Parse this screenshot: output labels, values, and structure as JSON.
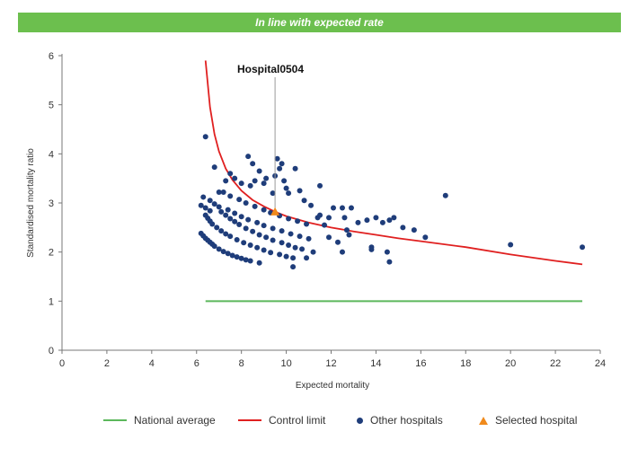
{
  "banner": {
    "text": "In line with expected rate",
    "color": "#6cbf4e"
  },
  "chart_data": {
    "type": "scatter",
    "title": "",
    "xlabel": "Expected mortality",
    "ylabel": "Standardised mortality ratio",
    "xlim": [
      0,
      24
    ],
    "ylim": [
      0,
      6
    ],
    "xticks": [
      0,
      2,
      4,
      6,
      8,
      10,
      12,
      14,
      16,
      18,
      20,
      22,
      24
    ],
    "yticks": [
      0,
      1,
      2,
      3,
      4,
      5,
      6
    ],
    "grid": false,
    "legend_position": "bottom",
    "colors": {
      "national": "#5cb85c",
      "control": "#e02020",
      "others": "#1f3d7a",
      "selected": "#f08a1c",
      "axis": "#777777"
    },
    "series": [
      {
        "name": "National average",
        "kind": "line",
        "x": [
          6.4,
          23.2
        ],
        "y": [
          1.0,
          1.0
        ]
      },
      {
        "name": "Control limit",
        "kind": "line",
        "x": [
          6.4,
          6.6,
          6.8,
          7.0,
          7.3,
          7.6,
          8.0,
          8.5,
          9.0,
          9.5,
          10.0,
          11.0,
          12.0,
          13.0,
          14.0,
          15.0,
          16.0,
          18.0,
          20.0,
          22.0,
          23.2
        ],
        "y": [
          5.9,
          4.95,
          4.4,
          4.05,
          3.7,
          3.47,
          3.25,
          3.06,
          2.93,
          2.82,
          2.73,
          2.6,
          2.5,
          2.42,
          2.35,
          2.28,
          2.22,
          2.1,
          1.95,
          1.82,
          1.75
        ]
      },
      {
        "name": "Other hospitals",
        "kind": "scatter",
        "x": [
          6.2,
          6.3,
          6.4,
          6.5,
          6.6,
          6.7,
          6.8,
          7.0,
          7.2,
          7.4,
          7.6,
          7.8,
          8.0,
          8.2,
          8.4,
          6.4,
          6.5,
          6.6,
          6.7,
          6.9,
          7.1,
          7.3,
          7.5,
          7.8,
          8.1,
          8.4,
          8.7,
          9.0,
          9.3,
          9.7,
          10.0,
          10.3,
          7.1,
          7.3,
          7.5,
          7.7,
          7.9,
          8.2,
          8.5,
          8.8,
          9.1,
          9.4,
          9.8,
          10.1,
          10.4,
          10.7,
          6.3,
          6.6,
          6.8,
          7.0,
          7.4,
          7.7,
          8.0,
          8.3,
          8.7,
          9.0,
          9.4,
          9.8,
          10.2,
          10.6,
          11.0,
          6.2,
          6.4,
          6.6,
          7.2,
          7.5,
          7.9,
          8.2,
          8.6,
          9.0,
          9.3,
          9.7,
          10.1,
          10.5,
          10.9,
          6.4,
          6.8,
          7.0,
          7.3,
          7.5,
          7.7,
          8.0,
          8.3,
          8.4,
          8.5,
          8.6,
          8.8,
          9.0,
          9.1,
          9.4,
          9.5,
          9.6,
          9.7,
          9.8,
          9.9,
          10.0,
          10.1,
          10.4,
          10.6,
          10.8,
          11.1,
          11.4,
          11.5,
          8.8,
          10.3,
          10.9,
          11.2,
          11.5,
          11.7,
          11.9,
          12.1,
          12.3,
          12.5,
          12.6,
          12.7,
          12.8,
          12.9,
          13.2,
          13.6,
          13.8,
          14.0,
          14.3,
          14.6,
          14.8,
          15.2,
          15.7,
          16.2,
          17.1,
          20.0,
          23.2,
          11.9,
          12.5,
          13.8,
          14.5,
          14.6
        ],
        "y": [
          2.38,
          2.33,
          2.28,
          2.24,
          2.2,
          2.16,
          2.12,
          2.06,
          2.01,
          1.97,
          1.93,
          1.9,
          1.87,
          1.84,
          1.82,
          2.75,
          2.69,
          2.63,
          2.57,
          2.5,
          2.43,
          2.37,
          2.32,
          2.25,
          2.19,
          2.14,
          2.09,
          2.04,
          1.99,
          1.95,
          1.91,
          1.88,
          2.82,
          2.75,
          2.68,
          2.62,
          2.56,
          2.48,
          2.42,
          2.35,
          2.3,
          2.24,
          2.19,
          2.14,
          2.09,
          2.06,
          3.12,
          3.05,
          2.98,
          2.92,
          2.86,
          2.79,
          2.72,
          2.66,
          2.6,
          2.54,
          2.48,
          2.43,
          2.37,
          2.32,
          2.27,
          2.95,
          2.9,
          2.84,
          3.22,
          3.14,
          3.07,
          3.0,
          2.93,
          2.86,
          2.8,
          2.74,
          2.68,
          2.63,
          2.57,
          4.35,
          3.73,
          3.22,
          3.45,
          3.6,
          3.5,
          3.4,
          3.95,
          3.35,
          3.8,
          3.45,
          3.65,
          3.4,
          3.5,
          3.2,
          3.55,
          3.9,
          3.7,
          3.8,
          3.45,
          3.3,
          3.2,
          3.7,
          3.25,
          3.05,
          2.95,
          2.7,
          3.35,
          1.78,
          1.7,
          1.88,
          2.0,
          2.75,
          2.55,
          2.7,
          2.9,
          2.2,
          2.9,
          2.7,
          2.45,
          2.35,
          2.9,
          2.6,
          2.65,
          2.05,
          2.7,
          2.6,
          2.65,
          2.7,
          2.5,
          2.45,
          2.3,
          3.15,
          2.15,
          2.1,
          2.3,
          2.0,
          2.1,
          2.0,
          1.8
        ]
      },
      {
        "name": "Selected hospital",
        "kind": "scatter",
        "x": [
          9.5
        ],
        "y": [
          2.82
        ]
      }
    ],
    "annotations": [
      {
        "text": "Hospital0504",
        "x": 9.5,
        "y": 2.82
      }
    ]
  }
}
